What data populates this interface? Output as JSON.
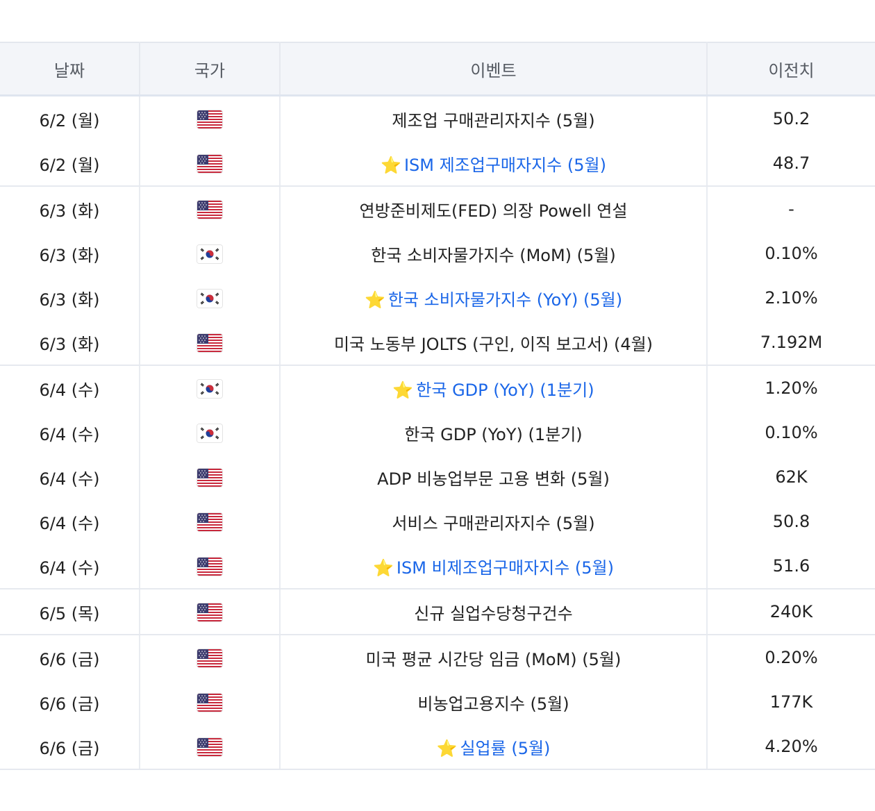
{
  "table": {
    "headers": {
      "date": "날짜",
      "country": "국가",
      "event": "이벤트",
      "previous": "이전치"
    },
    "rows": [
      {
        "date": "6/2 (월)",
        "country": "us-flag-icon",
        "event": "제조업 구매관리자지수 (5월)",
        "previous": "50.2",
        "starred": false,
        "group_end": false
      },
      {
        "date": "6/2 (월)",
        "country": "us-flag-icon",
        "event": "ISM 제조업구매자지수 (5월)",
        "previous": "48.7",
        "starred": true,
        "group_end": true
      },
      {
        "date": "6/3 (화)",
        "country": "us-flag-icon",
        "event": "연방준비제도(FED) 의장 Powell 연설",
        "previous": "-",
        "starred": false,
        "group_end": false
      },
      {
        "date": "6/3 (화)",
        "country": "kr-flag-icon",
        "event": "한국 소비자물가지수 (MoM) (5월)",
        "previous": "0.10%",
        "starred": false,
        "group_end": false
      },
      {
        "date": "6/3 (화)",
        "country": "kr-flag-icon",
        "event": "한국 소비자물가지수 (YoY) (5월)",
        "previous": "2.10%",
        "starred": true,
        "group_end": false
      },
      {
        "date": "6/3 (화)",
        "country": "us-flag-icon",
        "event": "미국 노동부 JOLTS (구인, 이직 보고서) (4월)",
        "previous": "7.192M",
        "starred": false,
        "group_end": true
      },
      {
        "date": "6/4 (수)",
        "country": "kr-flag-icon",
        "event": "한국 GDP (YoY) (1분기)",
        "previous": "1.20%",
        "starred": true,
        "group_end": false
      },
      {
        "date": "6/4 (수)",
        "country": "kr-flag-icon",
        "event": "한국 GDP (YoY) (1분기)",
        "previous": "0.10%",
        "starred": false,
        "group_end": false
      },
      {
        "date": "6/4 (수)",
        "country": "us-flag-icon",
        "event": "ADP 비농업부문 고용 변화 (5월)",
        "previous": "62K",
        "starred": false,
        "group_end": false
      },
      {
        "date": "6/4 (수)",
        "country": "us-flag-icon",
        "event": "서비스 구매관리자지수 (5월)",
        "previous": "50.8",
        "starred": false,
        "group_end": false
      },
      {
        "date": "6/4 (수)",
        "country": "us-flag-icon",
        "event": "ISM 비제조업구매자지수 (5월)",
        "previous": "51.6",
        "starred": true,
        "group_end": true
      },
      {
        "date": "6/5 (목)",
        "country": "us-flag-icon",
        "event": "신규 실업수당청구건수",
        "previous": "240K",
        "starred": false,
        "group_end": true
      },
      {
        "date": "6/6 (금)",
        "country": "us-flag-icon",
        "event": "미국 평균 시간당 임금 (MoM) (5월)",
        "previous": "0.20%",
        "starred": false,
        "group_end": false
      },
      {
        "date": "6/6 (금)",
        "country": "us-flag-icon",
        "event": "비농업고용지수 (5월)",
        "previous": "177K",
        "starred": false,
        "group_end": false
      },
      {
        "date": "6/6 (금)",
        "country": "us-flag-icon",
        "event": "실업률 (5월)",
        "previous": "4.20%",
        "starred": true,
        "group_end": true
      }
    ]
  },
  "colors": {
    "link": "#1a66e8",
    "header_bg": "#f3f5f9",
    "star": "#f2b705"
  }
}
